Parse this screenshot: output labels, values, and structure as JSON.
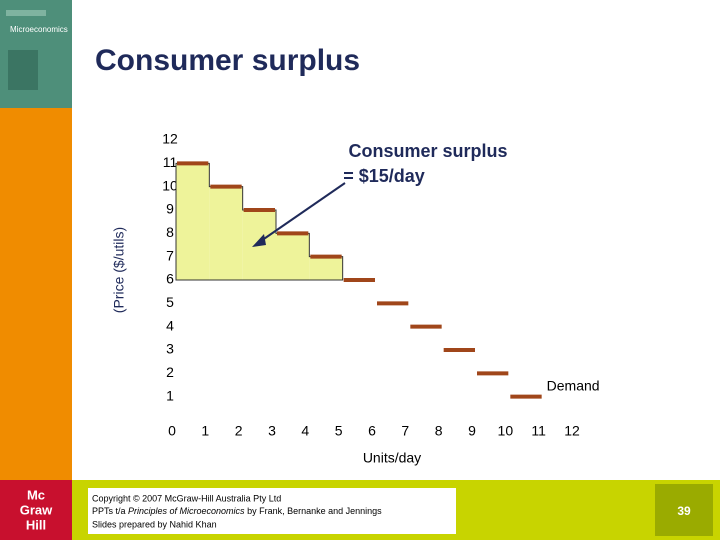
{
  "slide": {
    "cover_text": "Microeconomics",
    "logo": [
      "Mc",
      "Graw",
      "Hill"
    ],
    "footer": {
      "line1": "Copyright © 2007 McGraw-Hill Australia Pty Ltd",
      "line2_pre": "PPTs t/a ",
      "line2_italic": "Principles of Microeconomics",
      "line2_post": " by Frank, Bernanke and Jennings",
      "line3": "Slides prepared by Nahid Khan"
    },
    "page_number": "39"
  },
  "chart_data": {
    "type": "step",
    "title": "Consumer surplus",
    "x_label": "Units/day",
    "y_label": "(Price ($/utils)",
    "annotation": [
      "Consumer surplus",
      "= $15/day"
    ],
    "xlim": [
      0,
      12
    ],
    "ylim": [
      0,
      12
    ],
    "xticks": [
      0,
      1,
      2,
      3,
      4,
      5,
      6,
      7,
      8,
      9,
      10,
      11,
      12
    ],
    "yticks": [
      1,
      2,
      3,
      4,
      5,
      6,
      7,
      8,
      9,
      10,
      11,
      12
    ],
    "price": 6,
    "surplus_color": "#eef39a",
    "series": [
      {
        "name": "Demand",
        "color": "#a0461a",
        "x": [
          0,
          1,
          2,
          3,
          4,
          5,
          6,
          7,
          8,
          9,
          10
        ],
        "values": [
          11,
          10,
          9,
          8,
          7,
          6,
          5,
          4,
          3,
          2,
          1
        ]
      }
    ]
  }
}
